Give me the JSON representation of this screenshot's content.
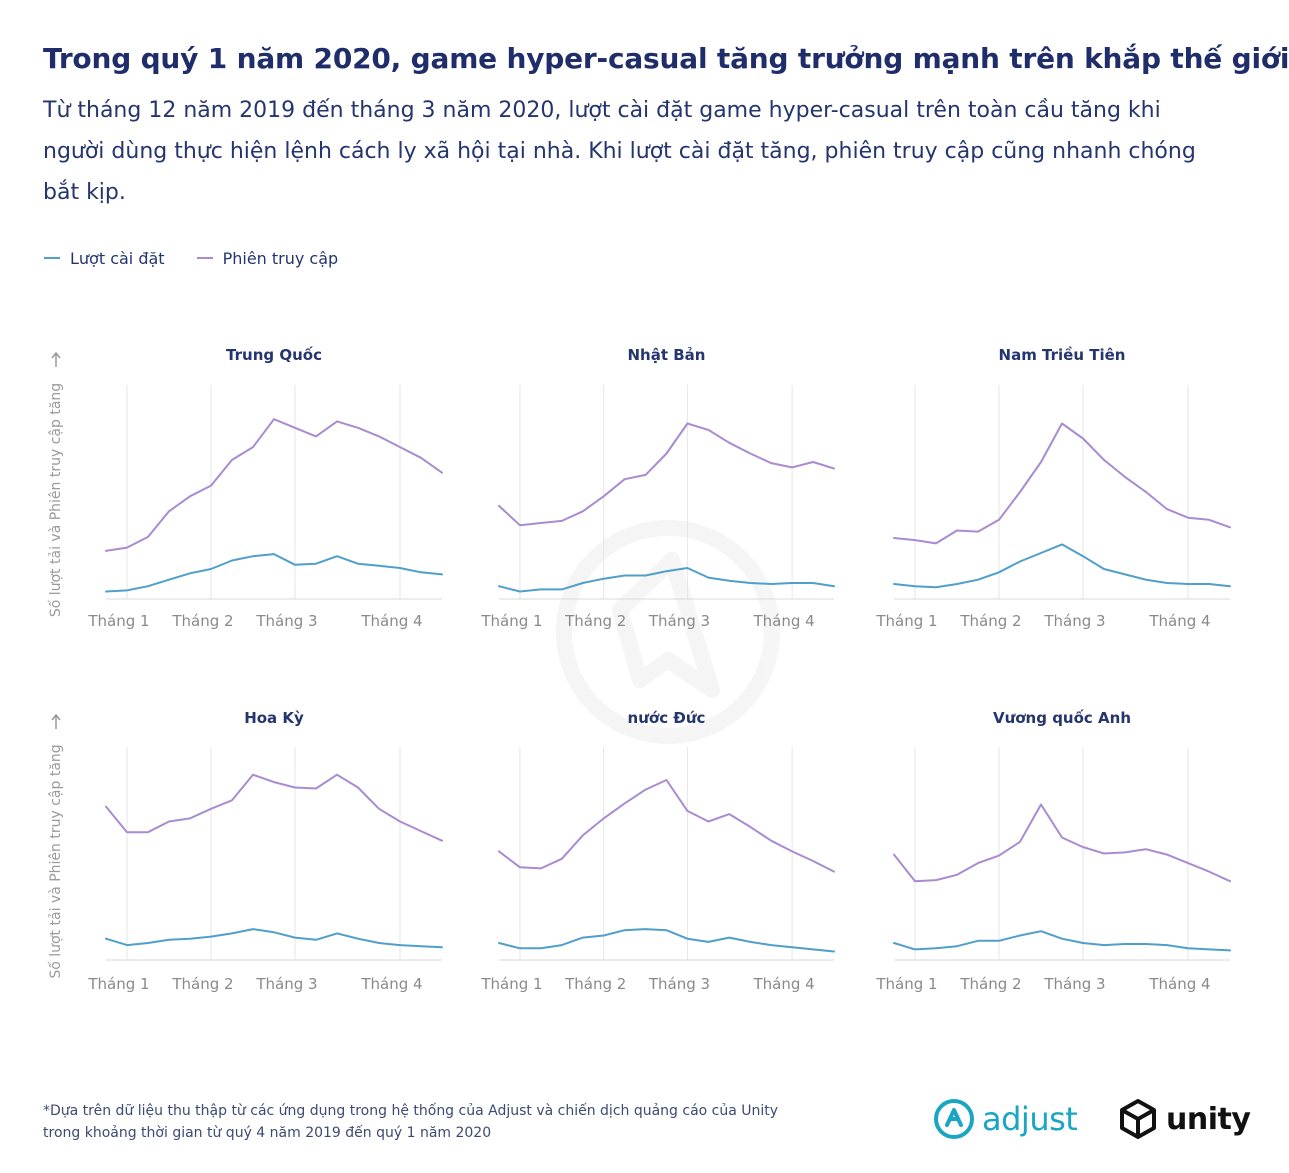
{
  "title": "Trong quý 1 năm 2020, game hyper-casual tăng trưởng mạnh trên khắp thế giới",
  "subtitle": "Từ tháng 12 năm 2019 đến tháng 3 năm 2020, lượt cài đặt game hyper-casual trên toàn cầu tăng khi người dùng thực hiện lệnh cách ly xã hội tại nhà. Khi lượt cài đặt tăng, phiên truy cập cũng nhanh chóng bắt kịp.",
  "legend": [
    {
      "label": "Lượt cài đặt",
      "color": "#4f9fca"
    },
    {
      "label": "Phiên truy cập",
      "color": "#a98bd1"
    }
  ],
  "colors": {
    "installs": "#4f9fca",
    "sessions": "#a98bd1",
    "grid": "#e6e6e6",
    "axis": "#d9d9d9"
  },
  "footnote": [
    "*Dựa trên dữ liệu thu thập từ các ứng dụng trong hệ thống của Adjust và chiến dịch quảng cáo của Unity",
    "trong khoảng thời gian từ quý 4 năm 2019 đến quý 1 năm 2020"
  ],
  "logos": {
    "adjust": "adjust",
    "unity": "unity"
  },
  "chart_data": [
    {
      "type": "line",
      "title": "Trung Quốc",
      "ylabel": "Số lượt tải và Phiên truy cập tăng",
      "xticks": [
        {
          "x": 1,
          "label": "Tháng 1"
        },
        {
          "x": 5,
          "label": "Tháng 2"
        },
        {
          "x": 9,
          "label": "Tháng 3"
        },
        {
          "x": 14,
          "label": "Tháng 4"
        }
      ],
      "x": [
        0,
        1,
        2,
        3,
        4,
        5,
        6,
        7,
        8,
        9,
        10,
        11,
        12,
        13,
        14,
        15,
        16
      ],
      "ylim": [
        0,
        100
      ],
      "series": [
        {
          "name": "Phiên truy cập",
          "values": [
            22.5,
            24,
            29,
            41,
            48,
            53,
            65,
            71,
            84,
            80,
            76,
            83,
            80,
            76,
            71,
            66,
            59
          ]
        },
        {
          "name": "Lượt cài đặt",
          "values": [
            3.5,
            4,
            6,
            9,
            12,
            14,
            18,
            20,
            21,
            16,
            16.5,
            20,
            16.5,
            15.5,
            14.5,
            12.5,
            11.5
          ]
        }
      ]
    },
    {
      "type": "line",
      "title": "Nhật Bản",
      "ylabel": "",
      "xticks": [
        {
          "x": 1,
          "label": "Tháng 1"
        },
        {
          "x": 5,
          "label": "Tháng 2"
        },
        {
          "x": 9,
          "label": "Tháng 3"
        },
        {
          "x": 14,
          "label": "Tháng 4"
        }
      ],
      "x": [
        0,
        1,
        2,
        3,
        4,
        5,
        6,
        7,
        8,
        9,
        10,
        11,
        12,
        13,
        14,
        15,
        16
      ],
      "ylim": [
        0,
        100
      ],
      "series": [
        {
          "name": "Phiên truy cập",
          "values": [
            43.5,
            34.5,
            35.5,
            36.5,
            41,
            48,
            56,
            58,
            68,
            82,
            79,
            73,
            68,
            63.5,
            61.5,
            64,
            61
          ]
        },
        {
          "name": "Lượt cài đặt",
          "values": [
            6,
            3.5,
            4.5,
            4.5,
            7.5,
            9.5,
            11,
            11,
            13,
            14.5,
            10,
            8.5,
            7.5,
            7,
            7.5,
            7.5,
            6
          ]
        }
      ]
    },
    {
      "type": "line",
      "title": "Nam Triều Tiên",
      "ylabel": "",
      "xticks": [
        {
          "x": 1,
          "label": "Tháng 1"
        },
        {
          "x": 5,
          "label": "Tháng 2"
        },
        {
          "x": 9,
          "label": "Tháng 3"
        },
        {
          "x": 14,
          "label": "Tháng 4"
        }
      ],
      "x": [
        0,
        1,
        2,
        3,
        4,
        5,
        6,
        7,
        8,
        9,
        10,
        11,
        12,
        13,
        14,
        15,
        16
      ],
      "ylim": [
        0,
        100
      ],
      "series": [
        {
          "name": "Phiên truy cập",
          "values": [
            28.5,
            27.5,
            26,
            32,
            31.5,
            37,
            50,
            64,
            82,
            75,
            65,
            57,
            50,
            42,
            38,
            37,
            33.5
          ]
        },
        {
          "name": "Lượt cài đặt",
          "values": [
            7,
            6,
            5.5,
            7,
            9,
            12.5,
            17.5,
            21.5,
            25.5,
            20,
            14,
            11.5,
            9,
            7.5,
            7,
            7,
            6
          ]
        }
      ]
    },
    {
      "type": "line",
      "title": "Hoa Kỳ",
      "ylabel": "Số lượt tải và Phiên truy cập tăng",
      "xticks": [
        {
          "x": 1,
          "label": "Tháng 1"
        },
        {
          "x": 5,
          "label": "Tháng 2"
        },
        {
          "x": 9,
          "label": "Tháng 3"
        },
        {
          "x": 14,
          "label": "Tháng 4"
        }
      ],
      "x": [
        0,
        1,
        2,
        3,
        4,
        5,
        6,
        7,
        8,
        9,
        10,
        11,
        12,
        13,
        14,
        15,
        16
      ],
      "ylim": [
        0,
        100
      ],
      "series": [
        {
          "name": "Phiên truy cập",
          "values": [
            72,
            60,
            60,
            65,
            66.5,
            71,
            75,
            87,
            83.5,
            81,
            80.5,
            87,
            81,
            71,
            65,
            60.5,
            56
          ]
        },
        {
          "name": "Lượt cài đặt",
          "values": [
            10,
            7,
            8,
            9.5,
            10,
            11,
            12.5,
            14.5,
            13,
            10.5,
            9.5,
            12.5,
            10,
            8,
            7,
            6.5,
            6
          ]
        }
      ]
    },
    {
      "type": "line",
      "title": "nước Đức",
      "ylabel": "",
      "xticks": [
        {
          "x": 1,
          "label": "Tháng 1"
        },
        {
          "x": 5,
          "label": "Tháng 2"
        },
        {
          "x": 9,
          "label": "Tháng 3"
        },
        {
          "x": 14,
          "label": "Tháng 4"
        }
      ],
      "x": [
        0,
        1,
        2,
        3,
        4,
        5,
        6,
        7,
        8,
        9,
        10,
        11,
        12,
        13,
        14,
        15,
        16
      ],
      "ylim": [
        0,
        100
      ],
      "series": [
        {
          "name": "Phiên truy cập",
          "values": [
            51,
            43.5,
            43,
            47.5,
            58.5,
            66.5,
            73.5,
            80,
            84.5,
            70,
            65,
            68.5,
            62.5,
            56,
            51,
            46.5,
            41.5
          ]
        },
        {
          "name": "Lượt cài đặt",
          "values": [
            8,
            5.5,
            5.5,
            7,
            10.5,
            11.5,
            14,
            14.5,
            14,
            10,
            8.5,
            10.5,
            8.5,
            7,
            6,
            5,
            4
          ]
        }
      ]
    },
    {
      "type": "line",
      "title": "Vương quốc Anh",
      "ylabel": "",
      "xticks": [
        {
          "x": 1,
          "label": "Tháng 1"
        },
        {
          "x": 5,
          "label": "Tháng 2"
        },
        {
          "x": 9,
          "label": "Tháng 3"
        },
        {
          "x": 14,
          "label": "Tháng 4"
        }
      ],
      "x": [
        0,
        1,
        2,
        3,
        4,
        5,
        6,
        7,
        8,
        9,
        10,
        11,
        12,
        13,
        14,
        15,
        16
      ],
      "ylim": [
        0,
        100
      ],
      "series": [
        {
          "name": "Phiên truy cập",
          "values": [
            49.5,
            37,
            37.5,
            40,
            45.5,
            49,
            55.5,
            73,
            57.5,
            53,
            50,
            50.5,
            52,
            49.5,
            45.5,
            41.5,
            37
          ]
        },
        {
          "name": "Lượt cài đặt",
          "values": [
            8,
            5,
            5.5,
            6.5,
            9,
            9,
            11.5,
            13.5,
            10,
            8,
            7,
            7.5,
            7.5,
            7,
            5.5,
            5,
            4.5
          ]
        }
      ]
    }
  ]
}
